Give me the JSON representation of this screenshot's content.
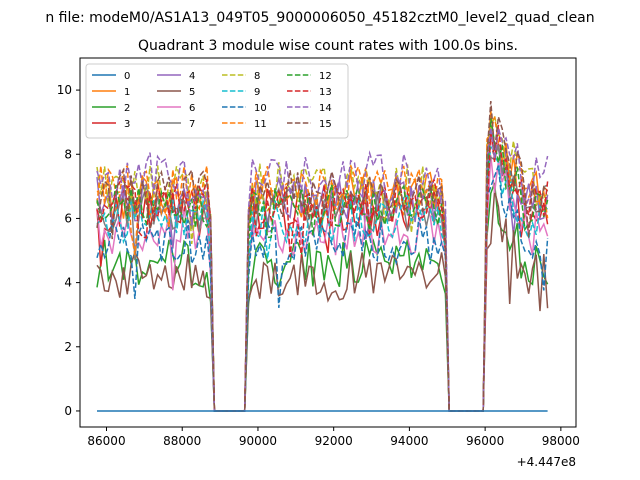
{
  "figure": {
    "suptitle": "n file: modeM0/AS1A13_049T05_9000006050_45182cztM0_level2_quad_clean",
    "offset_label": "+4.447e8"
  },
  "chart_data": {
    "type": "line",
    "title": "Quadrant 3 module wise count rates with 100.0s bins.",
    "xlabel": "",
    "ylabel": "",
    "x_offset": 444700000,
    "xlim": [
      85300,
      98400
    ],
    "ylim": [
      -0.5,
      11.0
    ],
    "x_ticks": [
      86000,
      88000,
      90000,
      92000,
      94000,
      96000,
      98000
    ],
    "x_tick_labels": [
      "86000",
      "88000",
      "90000",
      "92000",
      "94000",
      "96000",
      "98000"
    ],
    "y_ticks": [
      0,
      2,
      4,
      6,
      8,
      10
    ],
    "y_tick_labels": [
      "0",
      "2",
      "4",
      "6",
      "8",
      "10"
    ],
    "grid": false,
    "legend": {
      "placement": "top-left",
      "columns": 4
    },
    "x_start": 85750,
    "x_step": 100,
    "n_points": 120,
    "gaps": [
      [
        88850,
        89650
      ],
      [
        95050,
        95950
      ]
    ],
    "segments": [
      [
        85750,
        88750
      ],
      [
        89750,
        94950
      ],
      [
        96050,
        97650
      ]
    ],
    "series": [
      {
        "name": "0",
        "color": "#1f77b4",
        "dash": "solid",
        "level": 0.0,
        "flat": true
      },
      {
        "name": "1",
        "color": "#ff7f0e",
        "dash": "solid",
        "level": 6.7
      },
      {
        "name": "2",
        "color": "#2ca02c",
        "dash": "solid",
        "level": 4.6
      },
      {
        "name": "3",
        "color": "#d62728",
        "dash": "solid",
        "level": 6.2
      },
      {
        "name": "4",
        "color": "#9467bd",
        "dash": "solid",
        "level": 6.6
      },
      {
        "name": "5",
        "color": "#8c564b",
        "dash": "solid",
        "level": 4.2
      },
      {
        "name": "6",
        "color": "#e377c2",
        "dash": "solid",
        "level": 5.6
      },
      {
        "name": "7",
        "color": "#7f7f7f",
        "dash": "solid",
        "level": 6.3
      },
      {
        "name": "8",
        "color": "#bcbd22",
        "dash": "dashed",
        "level": 7.0
      },
      {
        "name": "9",
        "color": "#17becf",
        "dash": "dashed",
        "level": 6.0
      },
      {
        "name": "10",
        "color": "#1f77b4",
        "dash": "dashed",
        "level": 5.3
      },
      {
        "name": "11",
        "color": "#ff7f0e",
        "dash": "dashed",
        "level": 6.9
      },
      {
        "name": "12",
        "color": "#2ca02c",
        "dash": "dashed",
        "level": 6.4
      },
      {
        "name": "13",
        "color": "#d62728",
        "dash": "dashed",
        "level": 6.5
      },
      {
        "name": "14",
        "color": "#9467bd",
        "dash": "dashed",
        "level": 7.3
      },
      {
        "name": "15",
        "color": "#8c564b",
        "dash": "dashed",
        "level": 6.8
      }
    ]
  }
}
